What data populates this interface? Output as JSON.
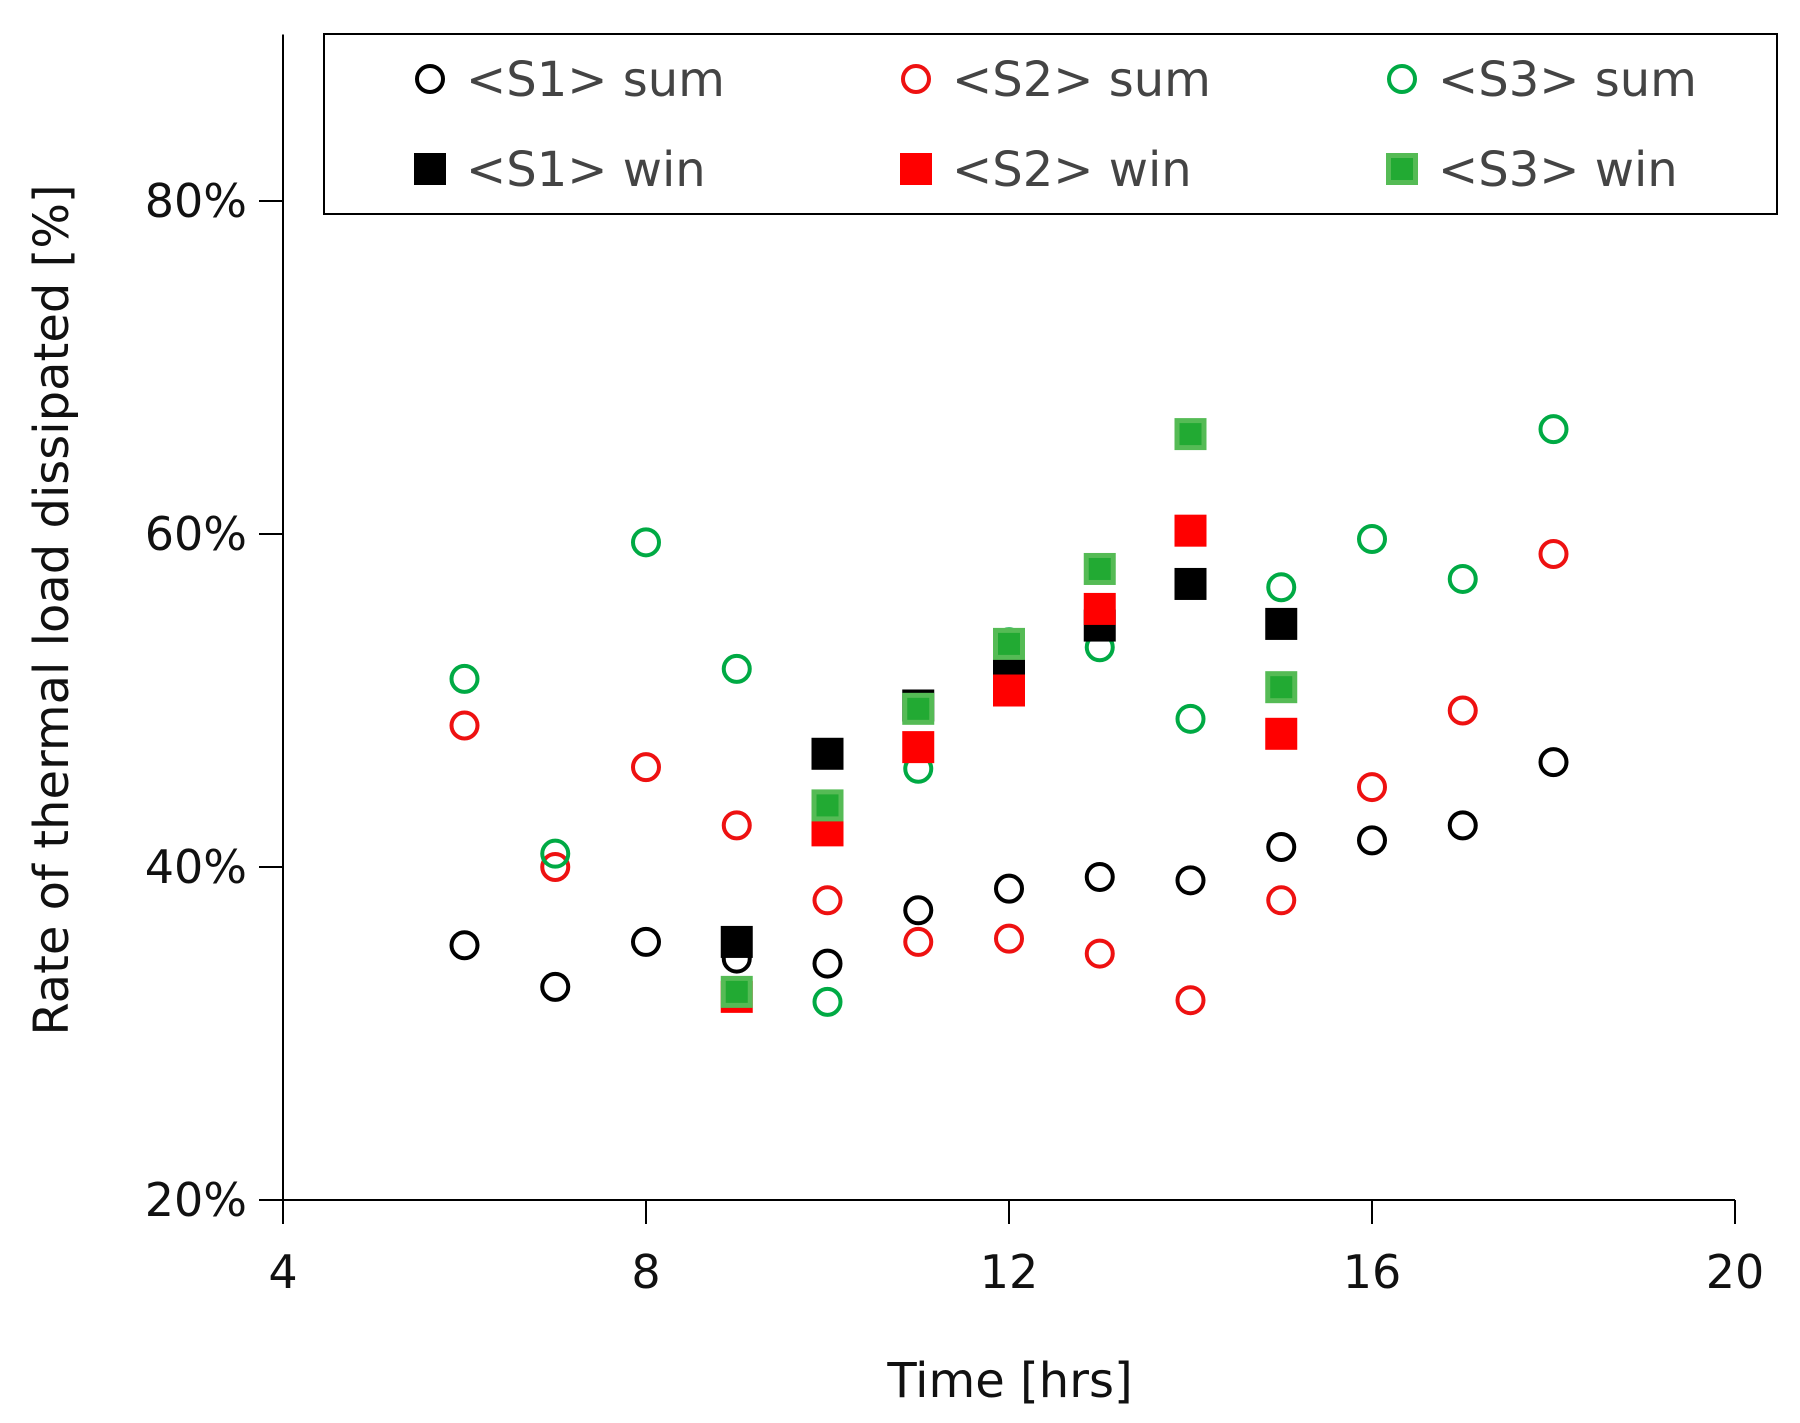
{
  "chart_data": {
    "type": "scatter",
    "title": "",
    "xlabel": "Time [hrs]",
    "ylabel": "Rate of thermal load dissipated [%]",
    "xlim": [
      4,
      20
    ],
    "ylim": [
      20,
      90
    ],
    "xticks": [
      4,
      8,
      12,
      16,
      20
    ],
    "xtick_labels": [
      "4",
      "8",
      "12",
      "16",
      "20"
    ],
    "yticks": [
      20,
      40,
      60,
      80
    ],
    "ytick_labels": [
      "20%",
      "40%",
      "60%",
      "80%"
    ],
    "grid": false,
    "legend_position": "top",
    "series": [
      {
        "name": "<S1> sum",
        "marker": "circle",
        "color": "#000000",
        "x": [
          6,
          7,
          8,
          9,
          10,
          11,
          12,
          13,
          14,
          15,
          16,
          17,
          18
        ],
        "y": [
          35.3,
          32.8,
          35.5,
          34.5,
          34.2,
          37.4,
          38.7,
          39.4,
          39.2,
          41.2,
          41.6,
          42.5,
          46.3
        ]
      },
      {
        "name": "<S2> sum",
        "marker": "circle",
        "color": "#ee1111",
        "x": [
          6,
          7,
          8,
          9,
          10,
          11,
          12,
          13,
          14,
          15,
          16,
          17,
          18
        ],
        "y": [
          48.5,
          40.0,
          46.0,
          42.5,
          38.0,
          35.5,
          35.7,
          34.8,
          32.0,
          38.0,
          44.8,
          49.4,
          58.8
        ]
      },
      {
        "name": "<S3> sum",
        "marker": "circle",
        "color": "#00aa44",
        "x": [
          6,
          7,
          8,
          9,
          10,
          11,
          12,
          13,
          14,
          15,
          16,
          17,
          18
        ],
        "y": [
          51.3,
          40.8,
          59.5,
          51.9,
          31.9,
          45.9,
          53.5,
          53.2,
          48.9,
          56.8,
          59.7,
          57.3,
          66.3
        ]
      },
      {
        "name": "<S1> win",
        "marker": "square",
        "color": "#000000",
        "x": [
          9,
          10,
          11,
          12,
          13,
          14,
          15
        ],
        "y": [
          35.5,
          46.8,
          49.7,
          52.2,
          54.5,
          57.0,
          54.6
        ]
      },
      {
        "name": "<S2> win",
        "marker": "square",
        "color": "#ff0000",
        "x": [
          9,
          10,
          11,
          12,
          13,
          14,
          15
        ],
        "y": [
          32.2,
          42.2,
          47.2,
          50.6,
          55.5,
          60.2,
          48.0
        ]
      },
      {
        "name": "<S3> win",
        "marker": "square",
        "color": "#22aa33",
        "x": [
          9,
          10,
          11,
          12,
          13,
          14,
          15
        ],
        "y": [
          32.5,
          43.7,
          49.5,
          53.4,
          57.9,
          66.0,
          50.8
        ]
      }
    ]
  }
}
